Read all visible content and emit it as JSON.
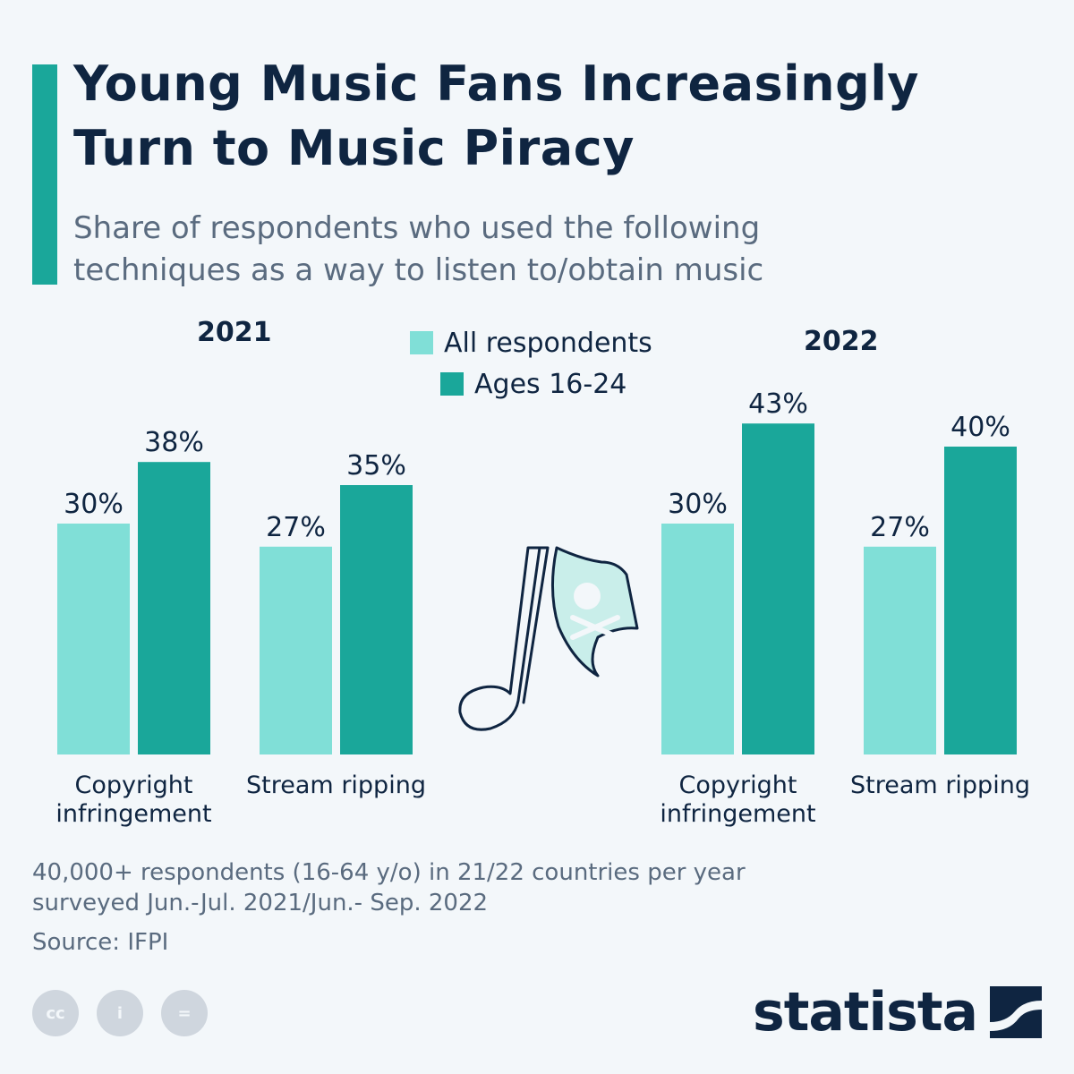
{
  "title": "Young Music Fans Increasingly\nTurn to Music Piracy",
  "subtitle": "Share of respondents who used the following\ntechniques as a way to listen to/obtain music",
  "legend": {
    "all_label": "All respondents",
    "young_label": "Ages 16-24"
  },
  "colors": {
    "accent": "#1aa79a",
    "all_respondents": "#80dfd7",
    "ages_16_24": "#1aa79a",
    "text": "#0f2541",
    "muted": "#5a6b7f"
  },
  "chart_data": [
    {
      "type": "bar",
      "title": "2021",
      "categories": [
        "Copyright\ninfringement",
        "Stream ripping"
      ],
      "series": [
        {
          "name": "All respondents",
          "values": [
            30,
            27
          ],
          "labels": [
            "30%",
            "27%"
          ]
        },
        {
          "name": "Ages 16-24",
          "values": [
            38,
            35
          ],
          "labels": [
            "38%",
            "35%"
          ]
        }
      ],
      "ylim": [
        0,
        50
      ]
    },
    {
      "type": "bar",
      "title": "2022",
      "categories": [
        "Copyright\ninfringement",
        "Stream ripping"
      ],
      "series": [
        {
          "name": "All respondents",
          "values": [
            30,
            27
          ],
          "labels": [
            "30%",
            "27%"
          ]
        },
        {
          "name": "Ages 16-24",
          "values": [
            43,
            40
          ],
          "labels": [
            "43%",
            "40%"
          ]
        }
      ],
      "ylim": [
        0,
        50
      ]
    }
  ],
  "footnote": "40,000+ respondents (16-64 y/o) in 21/22 countries per year\nsurveyed Jun.-Jul. 2021/Jun.- Sep. 2022",
  "source": "Source: IFPI",
  "cc_icons": [
    "cc-icon",
    "attribution-icon",
    "no-derivatives-icon"
  ],
  "cc_labels": [
    "cc",
    "i",
    "="
  ],
  "brand": "statista"
}
